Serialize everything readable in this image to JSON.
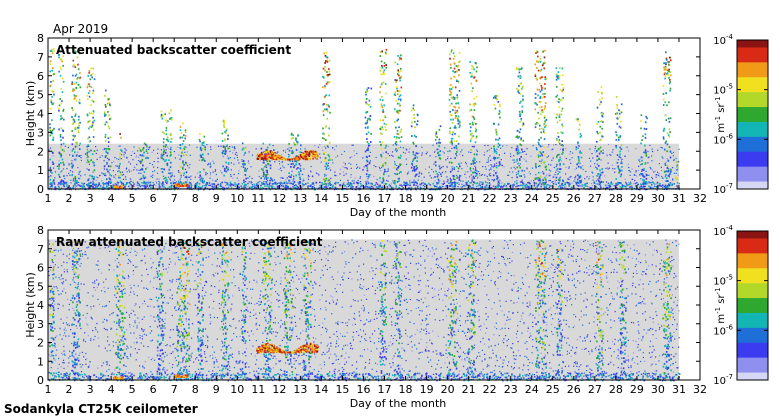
{
  "header": {
    "date_label": "Apr 2019"
  },
  "footer": {
    "station": "Sodankyla CT25K ceilometer"
  },
  "colors": {
    "background_fill": "#d9d9d9",
    "colormap": [
      "#d6d6f5",
      "#8f8fef",
      "#3b3bf0",
      "#1e6fd8",
      "#13b5b5",
      "#2ea82e",
      "#b3d82a",
      "#f0e020",
      "#f09a18",
      "#d82a14",
      "#8a1414"
    ]
  },
  "chart_data": [
    {
      "type": "heatmap",
      "title": "Attenuated backscatter coefficient",
      "xlabel": "Day of the month",
      "ylabel": "Height (km)",
      "xlim": [
        1,
        32
      ],
      "ylim": [
        0,
        8
      ],
      "xticks": [
        "1",
        "2",
        "3",
        "4",
        "5",
        "6",
        "7",
        "8",
        "9",
        "10",
        "11",
        "12",
        "13",
        "14",
        "15",
        "16",
        "17",
        "18",
        "19",
        "20",
        "21",
        "22",
        "23",
        "24",
        "25",
        "26",
        "27",
        "28",
        "29",
        "30",
        "31",
        "32"
      ],
      "yticks": [
        "0",
        "1",
        "2",
        "3",
        "4",
        "5",
        "6",
        "7",
        "8"
      ],
      "colorbar": {
        "scale": "log",
        "range": [
          1e-07,
          0.0001
        ],
        "tick_base": "10",
        "tick_exponents": [
          "-4",
          "-5",
          "-6",
          "-7"
        ],
        "unit_base": [
          "m",
          "sr"
        ],
        "unit_exp": [
          "-1",
          "-1"
        ]
      },
      "data_extent_days": [
        1,
        31
      ],
      "cloud_columns": [
        {
          "day": 1.15,
          "width": 0.2,
          "top": 7.5,
          "intensity": 0.75
        },
        {
          "day": 1.6,
          "width": 0.25,
          "top": 7.3,
          "intensity": 0.7
        },
        {
          "day": 2.3,
          "width": 0.4,
          "top": 7.4,
          "intensity": 0.8
        },
        {
          "day": 3.0,
          "width": 0.35,
          "top": 6.5,
          "intensity": 0.75
        },
        {
          "day": 3.8,
          "width": 0.3,
          "top": 5.5,
          "intensity": 0.7
        },
        {
          "day": 4.4,
          "width": 0.15,
          "top": 3.0,
          "intensity": 0.9
        },
        {
          "day": 5.5,
          "width": 0.4,
          "top": 2.5,
          "intensity": 0.55
        },
        {
          "day": 6.6,
          "width": 0.5,
          "top": 4.3,
          "intensity": 0.65
        },
        {
          "day": 7.4,
          "width": 0.35,
          "top": 3.6,
          "intensity": 0.75
        },
        {
          "day": 8.3,
          "width": 0.3,
          "top": 3.0,
          "intensity": 0.6
        },
        {
          "day": 9.4,
          "width": 0.3,
          "top": 3.8,
          "intensity": 0.65
        },
        {
          "day": 10.3,
          "width": 0.2,
          "top": 2.5,
          "intensity": 0.55
        },
        {
          "day": 11.4,
          "width": 0.6,
          "top": 2.5,
          "intensity": 0.6
        },
        {
          "day": 12.7,
          "width": 0.6,
          "top": 3.0,
          "intensity": 0.55
        },
        {
          "day": 14.2,
          "width": 0.35,
          "top": 7.3,
          "intensity": 0.9
        },
        {
          "day": 16.2,
          "width": 0.3,
          "top": 5.5,
          "intensity": 0.55
        },
        {
          "day": 16.9,
          "width": 0.3,
          "top": 7.5,
          "intensity": 0.85
        },
        {
          "day": 17.6,
          "width": 0.35,
          "top": 7.4,
          "intensity": 0.9
        },
        {
          "day": 18.4,
          "width": 0.3,
          "top": 4.5,
          "intensity": 0.6
        },
        {
          "day": 19.5,
          "width": 0.3,
          "top": 3.5,
          "intensity": 0.55
        },
        {
          "day": 20.3,
          "width": 0.5,
          "top": 7.4,
          "intensity": 0.85
        },
        {
          "day": 21.2,
          "width": 0.35,
          "top": 6.8,
          "intensity": 0.8
        },
        {
          "day": 22.3,
          "width": 0.3,
          "top": 5.0,
          "intensity": 0.6
        },
        {
          "day": 23.4,
          "width": 0.35,
          "top": 6.5,
          "intensity": 0.65
        },
        {
          "day": 24.4,
          "width": 0.55,
          "top": 7.4,
          "intensity": 0.9
        },
        {
          "day": 25.3,
          "width": 0.35,
          "top": 6.5,
          "intensity": 0.7
        },
        {
          "day": 26.2,
          "width": 0.25,
          "top": 4.0,
          "intensity": 0.6
        },
        {
          "day": 27.2,
          "width": 0.3,
          "top": 5.5,
          "intensity": 0.7
        },
        {
          "day": 28.1,
          "width": 0.3,
          "top": 5.0,
          "intensity": 0.65
        },
        {
          "day": 29.3,
          "width": 0.3,
          "top": 4.0,
          "intensity": 0.6
        },
        {
          "day": 30.4,
          "width": 0.35,
          "top": 7.3,
          "intensity": 0.8
        },
        {
          "day": 30.85,
          "width": 0.12,
          "top": 2.0,
          "intensity": 0.95
        }
      ],
      "layers": [
        {
          "day_start": 10.9,
          "day_end": 13.8,
          "height_start": 1.6,
          "height_end": 2.1,
          "intensity": 1.0
        },
        {
          "day_start": 7.0,
          "day_end": 7.6,
          "height_start": 0.2,
          "height_end": 0.3,
          "intensity": 0.95
        },
        {
          "day_start": 4.1,
          "day_end": 4.5,
          "height_start": 0.1,
          "height_end": 0.2,
          "intensity": 0.95
        }
      ]
    },
    {
      "type": "heatmap",
      "title": "Raw attenuated backscatter coefficient",
      "xlabel": "Day of the month",
      "ylabel": "Height (km)",
      "xlim": [
        1,
        32
      ],
      "ylim": [
        0,
        8
      ],
      "xticks": [
        "1",
        "2",
        "3",
        "4",
        "5",
        "6",
        "7",
        "8",
        "9",
        "10",
        "11",
        "12",
        "13",
        "14",
        "15",
        "16",
        "17",
        "18",
        "19",
        "20",
        "21",
        "22",
        "23",
        "24",
        "25",
        "26",
        "27",
        "28",
        "29",
        "30",
        "31",
        "32"
      ],
      "yticks": [
        "0",
        "1",
        "2",
        "3",
        "4",
        "5",
        "6",
        "7",
        "8"
      ],
      "colorbar": {
        "scale": "log",
        "range": [
          1e-07,
          0.0001
        ],
        "tick_base": "10",
        "tick_exponents": [
          "-4",
          "-5",
          "-6",
          "-7"
        ],
        "unit_base": [
          "m",
          "sr"
        ],
        "unit_exp": [
          "-1",
          "-1"
        ]
      },
      "data_extent_days": [
        1,
        31
      ],
      "cloud_columns": [
        {
          "day": 1.15,
          "width": 0.2,
          "top": 7.5,
          "intensity": 0.7
        },
        {
          "day": 2.3,
          "width": 0.4,
          "top": 7.4,
          "intensity": 0.6
        },
        {
          "day": 4.4,
          "width": 0.4,
          "top": 7.5,
          "intensity": 0.75
        },
        {
          "day": 6.3,
          "width": 0.3,
          "top": 7.5,
          "intensity": 0.55
        },
        {
          "day": 7.4,
          "width": 0.6,
          "top": 7.5,
          "intensity": 0.8
        },
        {
          "day": 8.2,
          "width": 0.3,
          "top": 7.5,
          "intensity": 0.6
        },
        {
          "day": 9.4,
          "width": 0.35,
          "top": 7.5,
          "intensity": 0.7
        },
        {
          "day": 10.3,
          "width": 0.2,
          "top": 7.5,
          "intensity": 0.55
        },
        {
          "day": 11.4,
          "width": 0.4,
          "top": 7.5,
          "intensity": 0.7
        },
        {
          "day": 12.4,
          "width": 0.4,
          "top": 7.5,
          "intensity": 0.7
        },
        {
          "day": 13.3,
          "width": 0.35,
          "top": 7.5,
          "intensity": 0.7
        },
        {
          "day": 16.9,
          "width": 0.3,
          "top": 7.5,
          "intensity": 0.6
        },
        {
          "day": 17.6,
          "width": 0.25,
          "top": 7.5,
          "intensity": 0.6
        },
        {
          "day": 20.2,
          "width": 0.4,
          "top": 7.5,
          "intensity": 0.75
        },
        {
          "day": 21.1,
          "width": 0.35,
          "top": 7.5,
          "intensity": 0.7
        },
        {
          "day": 24.4,
          "width": 0.5,
          "top": 7.5,
          "intensity": 0.8
        },
        {
          "day": 25.3,
          "width": 0.3,
          "top": 7.0,
          "intensity": 0.65
        },
        {
          "day": 27.2,
          "width": 0.3,
          "top": 7.5,
          "intensity": 0.75
        },
        {
          "day": 28.3,
          "width": 0.3,
          "top": 7.5,
          "intensity": 0.6
        },
        {
          "day": 30.4,
          "width": 0.4,
          "top": 7.5,
          "intensity": 0.8
        }
      ],
      "layers": [
        {
          "day_start": 10.9,
          "day_end": 13.8,
          "height_start": 1.5,
          "height_end": 2.0,
          "intensity": 1.0
        },
        {
          "day_start": 7.0,
          "day_end": 7.6,
          "height_start": 0.2,
          "height_end": 0.3,
          "intensity": 0.95
        },
        {
          "day_start": 4.1,
          "day_end": 4.5,
          "height_start": 0.1,
          "height_end": 0.2,
          "intensity": 0.95
        }
      ]
    }
  ]
}
